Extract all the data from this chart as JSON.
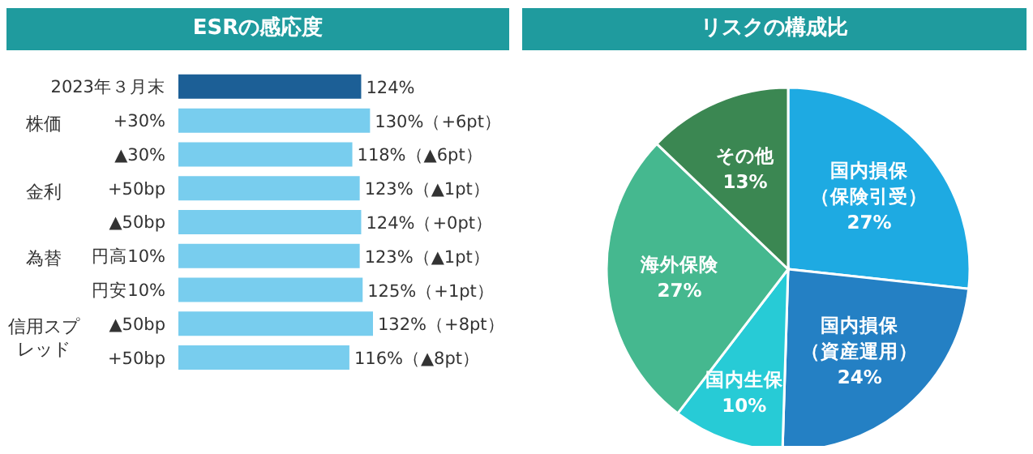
{
  "chart_data": [
    {
      "type": "bar",
      "orientation": "horizontal",
      "title": "ESRの感応度",
      "categories": [
        "2023年３月末",
        "+30%",
        "▲30%",
        "+50bp",
        "▲50bp",
        "円高10%",
        "円安10%",
        "▲50bp",
        "+50bp"
      ],
      "values": [
        124,
        130,
        118,
        123,
        124,
        123,
        125,
        132,
        116
      ],
      "colors": [
        "#1c5f96",
        "#78cdee",
        "#78cdee",
        "#78cdee",
        "#78cdee",
        "#78cdee",
        "#78cdee",
        "#78cdee",
        "#78cdee"
      ],
      "value_labels": [
        "124%",
        "130%（+6pt）",
        "118%（▲6pt）",
        "123%（▲1pt）",
        "124%（+0pt）",
        "123%（▲1pt）",
        "125%（+1pt）",
        "132%（+8pt）",
        "116%（▲8pt）"
      ],
      "tick_labels": "y",
      "annotations": [
        "株価",
        "金利",
        "為替",
        "信用スプレッド"
      ]
    },
    {
      "type": "pie",
      "title": "リスクの構成比",
      "categories": [
        "国内損保（保険引受）",
        "国内損保（資産運用）",
        "国内生保",
        "海外保険",
        "その他"
      ],
      "values": [
        27,
        24,
        10,
        27,
        13
      ],
      "colors": [
        "#1eaae2",
        "#2480c4",
        "#27cbd6",
        "#45b88f",
        "#3b8752"
      ],
      "value_labels": [
        "27%",
        "24%",
        "10%",
        "27%",
        "13%"
      ]
    }
  ]
}
